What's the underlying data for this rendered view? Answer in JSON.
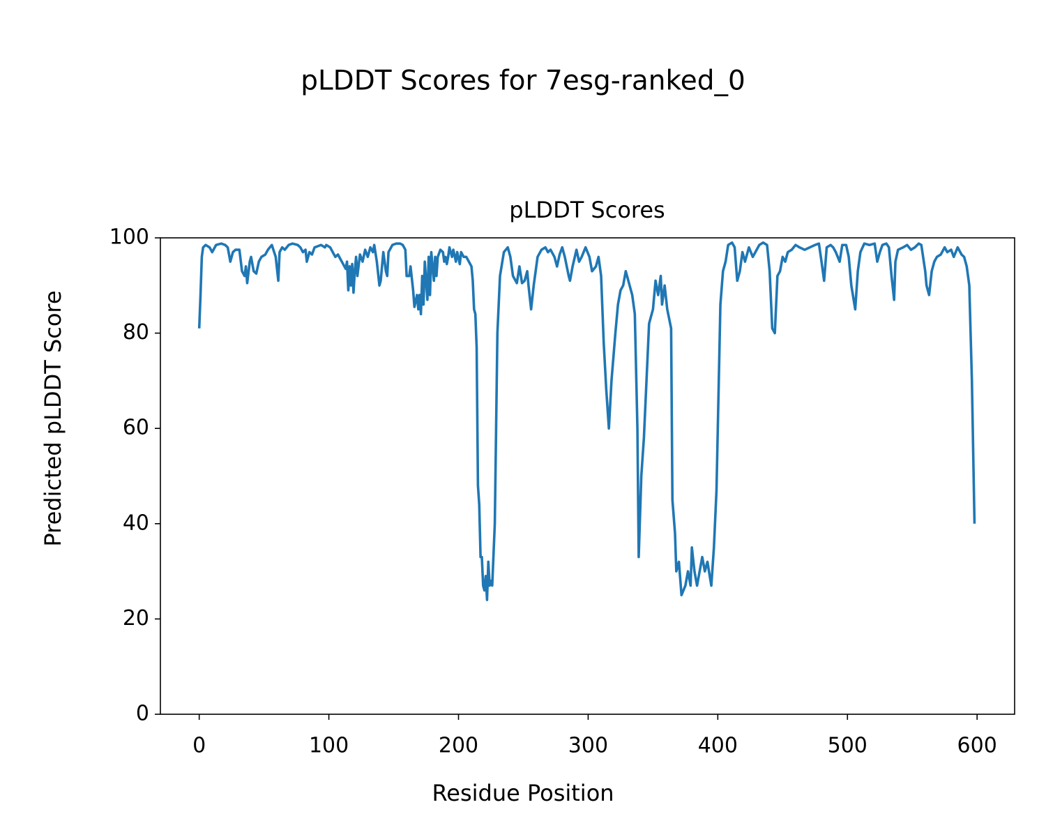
{
  "chart_data": {
    "type": "line",
    "suptitle": "pLDDT Scores for 7esg-ranked_0",
    "title": "pLDDT Scores",
    "xlabel": "Residue Position",
    "ylabel": "Predicted pLDDT Score",
    "xlim": [
      -29.95,
      628.95
    ],
    "ylim": [
      0,
      100
    ],
    "xticks": [
      0,
      100,
      200,
      300,
      400,
      500,
      600
    ],
    "yticks": [
      0,
      20,
      40,
      60,
      80,
      100
    ],
    "series": [
      {
        "color": "#1f77b4",
        "x": [
          0,
          1,
          2,
          3,
          5,
          8,
          10,
          13,
          17,
          20,
          22,
          24,
          26,
          28,
          31,
          33,
          35,
          36,
          37,
          39,
          40,
          42,
          44,
          46,
          48,
          51,
          53,
          56,
          59,
          61,
          62,
          64,
          66,
          69,
          72,
          76,
          78,
          80,
          82,
          83,
          85,
          87,
          89,
          91,
          94,
          97,
          98,
          101,
          103,
          105,
          107,
          109,
          111,
          113,
          114,
          115,
          116,
          117,
          118,
          119,
          120,
          121,
          122,
          124,
          126,
          128,
          130,
          132,
          134,
          135,
          137,
          139,
          140,
          142,
          144,
          145,
          146,
          149,
          152,
          155,
          157,
          159,
          160,
          162,
          163,
          165,
          166,
          168,
          169,
          170,
          171,
          172,
          173,
          174,
          176,
          177,
          178,
          179,
          181,
          182,
          183,
          184,
          186,
          188,
          189,
          190,
          191,
          192,
          193,
          195,
          196,
          198,
          199,
          201,
          202,
          204,
          206,
          208,
          210,
          211,
          212,
          213,
          214,
          215,
          216,
          217,
          218,
          219,
          220,
          221,
          222,
          223,
          224,
          225,
          226,
          228,
          230,
          232,
          235,
          238,
          240,
          242,
          245,
          247,
          249,
          251,
          253,
          254,
          256,
          258,
          261,
          264,
          267,
          269,
          271,
          274,
          276,
          278,
          280,
          282,
          285,
          286,
          288,
          291,
          293,
          295,
          298,
          301,
          303,
          306,
          308,
          310,
          312,
          314,
          316,
          318,
          321,
          323,
          325,
          327,
          329,
          331,
          334,
          336,
          338,
          339,
          341,
          343,
          345,
          347,
          350,
          352,
          354,
          356,
          357,
          359,
          361,
          364,
          365,
          367,
          368,
          370,
          372,
          375,
          377,
          379,
          380,
          382,
          384,
          386,
          388,
          390,
          392,
          395,
          397,
          399,
          402,
          404,
          406,
          408,
          411,
          413,
          415,
          417,
          419,
          421,
          424,
          427,
          429,
          432,
          435,
          438,
          440,
          442,
          444,
          446,
          448,
          450,
          452,
          454,
          457,
          460,
          463,
          467,
          471,
          475,
          478,
          480,
          482,
          484,
          487,
          489,
          491,
          494,
          496,
          499,
          501,
          503,
          506,
          508,
          510,
          513,
          517,
          521,
          523,
          525,
          527,
          530,
          532,
          534,
          536,
          537,
          539,
          543,
          546,
          549,
          552,
          555,
          557,
          560,
          561,
          563,
          565,
          567,
          569,
          572,
          575,
          577,
          580,
          582,
          585,
          588,
          590,
          592,
          594,
          596,
          598
        ],
        "values": [
          81,
          88,
          96,
          98,
          98.5,
          98,
          97,
          98.5,
          98.8,
          98.5,
          98,
          95,
          97,
          97.5,
          97.5,
          93,
          92,
          94,
          90.5,
          95,
          96,
          93,
          92.5,
          95,
          96,
          96.5,
          97.5,
          98.5,
          96,
          91,
          97,
          98,
          97.5,
          98.5,
          98.8,
          98.5,
          98,
          97,
          97.5,
          95,
          97,
          96.5,
          98,
          98.2,
          98.5,
          98,
          98.5,
          98,
          97,
          96,
          96.5,
          95.5,
          94.5,
          93.5,
          95,
          89,
          94,
          90,
          94.5,
          88.5,
          93,
          96,
          92,
          96.5,
          95,
          97.5,
          96,
          98,
          97,
          98.5,
          95,
          90,
          91,
          97,
          93,
          92,
          97,
          98.5,
          98.8,
          98.8,
          98.5,
          97.5,
          92,
          92,
          94,
          89,
          85.5,
          88,
          85,
          88,
          84,
          92,
          86,
          95,
          87,
          96,
          88,
          97,
          91,
          96,
          92,
          96,
          97.5,
          97,
          95,
          96,
          94.5,
          96,
          98,
          96,
          97.5,
          95,
          97,
          94.5,
          97,
          96,
          96,
          95,
          94,
          91,
          85,
          84,
          77,
          48,
          44,
          33,
          33,
          27,
          26,
          29,
          24,
          32,
          27,
          28,
          27,
          40,
          80,
          92,
          97,
          98,
          96,
          92,
          90.5,
          94,
          90.5,
          91,
          93,
          90,
          85,
          90,
          96,
          97.5,
          98,
          97,
          97.5,
          96,
          94,
          96.5,
          98,
          96,
          92,
          91,
          94,
          97.5,
          95,
          96,
          98,
          96,
          93,
          94,
          96,
          92,
          78,
          68,
          60,
          70,
          80,
          86,
          89,
          90,
          93,
          91,
          88,
          84,
          60,
          33,
          50,
          58,
          70,
          82,
          85,
          91,
          88,
          92,
          86,
          90,
          85,
          81,
          45,
          38,
          30,
          32,
          25,
          27,
          30,
          27,
          35,
          30,
          27,
          30,
          33,
          30,
          32,
          27,
          35,
          47,
          86,
          93,
          95,
          98.5,
          99,
          98,
          91,
          93,
          97,
          95,
          98,
          96,
          97,
          98.5,
          99,
          98.5,
          93,
          81,
          80,
          92,
          93,
          96,
          95,
          97,
          97.5,
          98.5,
          98,
          97.5,
          98,
          98.5,
          98.8,
          95,
          91,
          98,
          98.5,
          98,
          97,
          95,
          98.5,
          98.5,
          96,
          90,
          85,
          93,
          97,
          98.8,
          98.5,
          98.8,
          95,
          97,
          98.5,
          98.8,
          98,
          92,
          87,
          95,
          97.5,
          98,
          98.5,
          97.5,
          98,
          98.8,
          98.5,
          93,
          90,
          88,
          93,
          95,
          96,
          96.5,
          98,
          97,
          97.5,
          96,
          98,
          96.5,
          96,
          94,
          90,
          70,
          40
        ]
      }
    ]
  }
}
